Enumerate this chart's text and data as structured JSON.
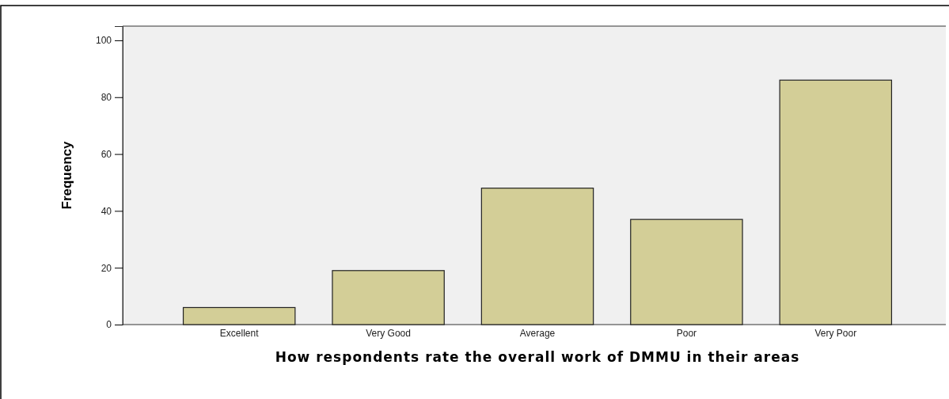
{
  "chart_data": {
    "type": "bar",
    "xlabel": "How respondents rate the overall work of DMMU in their areas",
    "ylabel": "Frequency",
    "categories": [
      "Excellent",
      "Very Good",
      "Average",
      "Poor",
      "Very Poor"
    ],
    "values": [
      6,
      19,
      48,
      37,
      86
    ],
    "color": "#d3ce97",
    "ylim": [
      0,
      105
    ],
    "yticks": [
      0,
      20,
      40,
      60,
      80,
      100
    ],
    "grid": false
  }
}
